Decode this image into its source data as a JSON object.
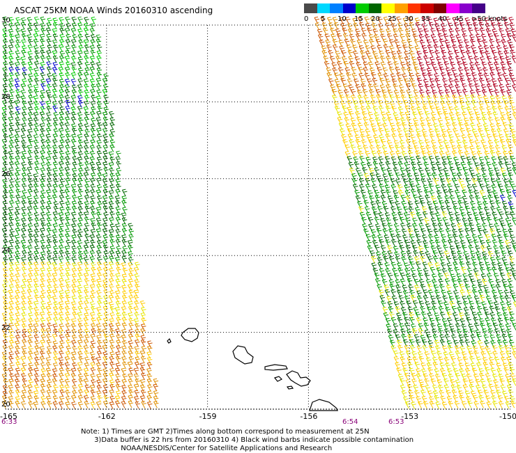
{
  "title": "ASCAT 25KM NOAA Winds 20160310 ascending",
  "colorbar": {
    "unit": "knots",
    "labels": [
      "0",
      "5",
      "10",
      "15",
      "20",
      "25",
      "30",
      "35",
      "40",
      "45",
      ">50"
    ],
    "colors": [
      "#4a4a4a",
      "#00d8ff",
      "#0080ff",
      "#0000cc",
      "#00cc00",
      "#006600",
      "#ffff00",
      "#ffa000",
      "#ff3300",
      "#cc0000",
      "#800000",
      "#ff00ff",
      "#8800cc",
      "#440088"
    ]
  },
  "map": {
    "lon_labels": [
      "-165",
      "-162",
      "-159",
      "-156",
      "-153",
      "-150"
    ],
    "lat_labels": [
      "30",
      "28",
      "26",
      "24",
      "22",
      "20"
    ],
    "lon_range": [
      -165,
      -150
    ],
    "lat_range": [
      20,
      30
    ],
    "grid": "dotted"
  },
  "swath_times": {
    "left": "6:33",
    "right_a": "6:54",
    "right_b": "6:53"
  },
  "notes": {
    "line1": "Note: 1) Times are GMT 2)Times along bottom correspond to measurement at 25N",
    "line2": "      3)Data buffer is 22 hrs from 20160310 4) Black wind barbs indicate possible contamination",
    "line3": "                  NOAA/NESDIS/Center for Satellite Applications and Research"
  }
}
